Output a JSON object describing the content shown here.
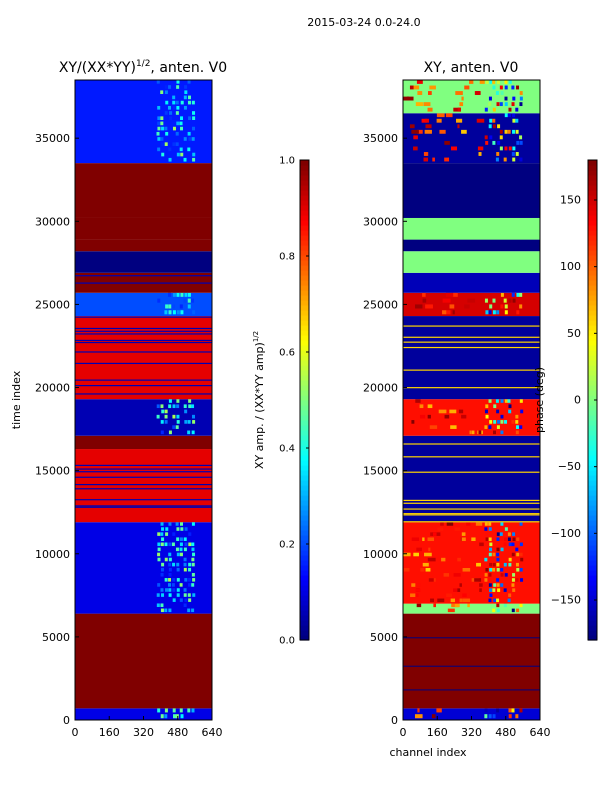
{
  "suptitle": "2015-03-24 0.0-24.0",
  "chart_data": [
    {
      "type": "heatmap",
      "title": "XY/(XX*YY)^1/2, anten. V0",
      "title_main": "XY/(XX*YY)",
      "title_sup": "1/2",
      "title_tail": ", anten. V0",
      "xlabel": "",
      "ylabel": "time index",
      "xlim": [
        0,
        640
      ],
      "ylim": [
        0,
        38500
      ],
      "xticks": [
        0,
        160,
        320,
        480,
        640
      ],
      "yticks": [
        0,
        5000,
        10000,
        15000,
        20000,
        25000,
        30000,
        35000
      ],
      "colorbar": {
        "label_main": "XY amp. / (XX*YY amp)",
        "label_sup": "1/2",
        "range": [
          0.0,
          1.0
        ],
        "ticks": [
          "0.0",
          "0.2",
          "0.4",
          "0.6",
          "0.8",
          "1.0"
        ],
        "tick_values": [
          0.0,
          0.2,
          0.4,
          0.6,
          0.8,
          1.0
        ]
      },
      "bands": [
        {
          "t0": 0,
          "t1": 700,
          "value": 0.1,
          "noisy": true
        },
        {
          "t0": 700,
          "t1": 6400,
          "value": 1.0
        },
        {
          "t0": 6400,
          "t1": 11900,
          "value": 0.1,
          "noisy": true
        },
        {
          "t0": 11900,
          "t1": 16300,
          "value": 0.9,
          "striped": true
        },
        {
          "t0": 16300,
          "t1": 17100,
          "value": 1.0
        },
        {
          "t0": 17100,
          "t1": 19300,
          "value": 0.05,
          "noisy": true
        },
        {
          "t0": 19300,
          "t1": 24300,
          "value": 0.9,
          "striped": true
        },
        {
          "t0": 24300,
          "t1": 25700,
          "value": 0.2,
          "noisy": true
        },
        {
          "t0": 25700,
          "t1": 26900,
          "value": 1.0,
          "striped": true
        },
        {
          "t0": 26900,
          "t1": 28200,
          "value": 0.0
        },
        {
          "t0": 28200,
          "t1": 28900,
          "value": 1.0
        },
        {
          "t0": 28900,
          "t1": 30200,
          "value": 1.0
        },
        {
          "t0": 30200,
          "t1": 33500,
          "value": 1.0
        },
        {
          "t0": 33500,
          "t1": 38500,
          "value": 0.15,
          "noisy": true
        }
      ]
    },
    {
      "type": "heatmap",
      "title": "XY, anten. V0",
      "xlabel": "channel index",
      "ylabel": "",
      "xlim": [
        0,
        640
      ],
      "ylim": [
        0,
        38500
      ],
      "xticks": [
        0,
        160,
        320,
        480,
        640
      ],
      "yticks": [
        0,
        5000,
        10000,
        15000,
        20000,
        25000,
        30000,
        35000
      ],
      "colorbar": {
        "label": "phase (deg)",
        "range": [
          -180,
          180
        ],
        "ticks": [
          "−150",
          "−100",
          "−50",
          "0",
          "50",
          "100",
          "150"
        ],
        "tick_values": [
          -150,
          -100,
          -50,
          0,
          50,
          100,
          150
        ]
      },
      "bands": [
        {
          "t0": 0,
          "t1": 700,
          "value": -150,
          "noisy": true
        },
        {
          "t0": 700,
          "t1": 6400,
          "value": 180,
          "lines": true
        },
        {
          "t0": 6400,
          "t1": 7000,
          "value": 0,
          "noisy": true
        },
        {
          "t0": 7000,
          "t1": 11900,
          "value": 130,
          "noisy": true
        },
        {
          "t0": 11900,
          "t1": 17100,
          "value": -170,
          "striped": true
        },
        {
          "t0": 17100,
          "t1": 19300,
          "value": 130,
          "noisy": true
        },
        {
          "t0": 19300,
          "t1": 24300,
          "value": -170,
          "striped": true
        },
        {
          "t0": 24300,
          "t1": 25700,
          "value": 150,
          "noisy": true
        },
        {
          "t0": 25700,
          "t1": 26900,
          "value": -160
        },
        {
          "t0": 26900,
          "t1": 28200,
          "value": 0
        },
        {
          "t0": 28200,
          "t1": 28900,
          "value": -180
        },
        {
          "t0": 28900,
          "t1": 30200,
          "value": 0
        },
        {
          "t0": 30200,
          "t1": 33500,
          "value": -180
        },
        {
          "t0": 33500,
          "t1": 36500,
          "value": -170,
          "noisy": true
        },
        {
          "t0": 36500,
          "t1": 38500,
          "value": 0,
          "noisy": true
        }
      ]
    }
  ]
}
